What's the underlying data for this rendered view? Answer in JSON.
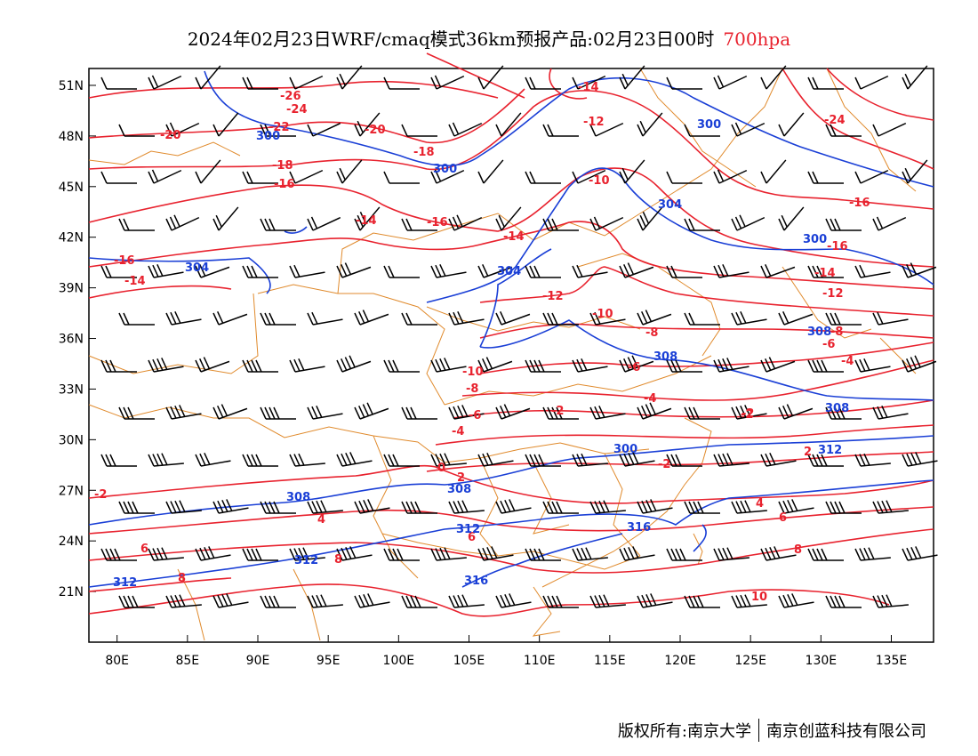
{
  "title": {
    "text": "2024年02月23日WRF/cmaq模式36km预报产品:02月23日00时",
    "level": "700hpa"
  },
  "footer": {
    "left": "版权所有:南京大学",
    "right": "南京创蓝科技有限公司"
  },
  "colors": {
    "temperature": "#e8222e",
    "height": "#1a3fd6",
    "border": "#e08a2c",
    "wind": "#000000"
  },
  "axes": {
    "x_ticks": [
      "80E",
      "85E",
      "90E",
      "95E",
      "100E",
      "105E",
      "110E",
      "115E",
      "120E",
      "125E",
      "130E",
      "135E"
    ],
    "y_ticks": [
      "51N",
      "48N",
      "45N",
      "42N",
      "39N",
      "36N",
      "33N",
      "30N",
      "27N",
      "24N",
      "21N"
    ],
    "lon_range": [
      78,
      138
    ],
    "lat_range": [
      18,
      52
    ]
  },
  "temperature_labels": [
    "-26",
    "-24",
    "-22",
    "-20",
    "-20",
    "-18",
    "-18",
    "-16",
    "-16",
    "-16",
    "-14",
    "-14",
    "-14",
    "-14",
    "-12",
    "-12",
    "-12",
    "-10",
    "-10",
    "-10",
    "-8",
    "-8",
    "-6",
    "-6",
    "-4",
    "-4",
    "-4",
    "-2",
    "-2",
    "-2",
    "-2",
    "0",
    "2",
    "2",
    "4",
    "4",
    "6",
    "6",
    "6",
    "8",
    "8",
    "8",
    "10",
    "-24",
    "-16",
    "-14",
    "-8",
    "-6",
    "-2",
    "-16"
  ],
  "height_labels": [
    "300",
    "300",
    "300",
    "300",
    "304",
    "304",
    "304",
    "308",
    "308",
    "308",
    "308",
    "308",
    "312",
    "312",
    "312",
    "312",
    "316",
    "316",
    "300"
  ]
}
